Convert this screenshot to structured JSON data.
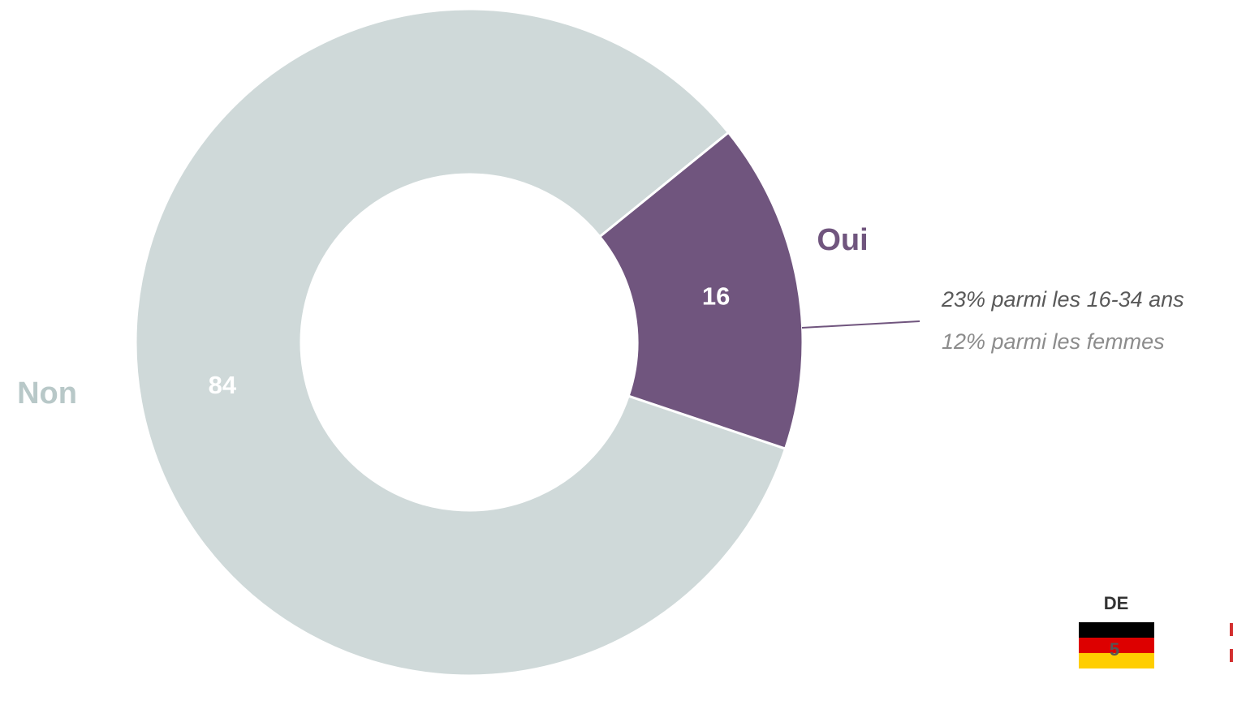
{
  "chart_data": {
    "type": "donut",
    "categories": [
      "Non",
      "Oui"
    ],
    "values": [
      84,
      16
    ],
    "colors": [
      "#cfd9d9",
      "#70557e"
    ],
    "annotations": [
      "23% parmi les 16-34 ans",
      "12% parmi les femmes"
    ]
  },
  "badge": {
    "label": "DE",
    "value": 5
  }
}
